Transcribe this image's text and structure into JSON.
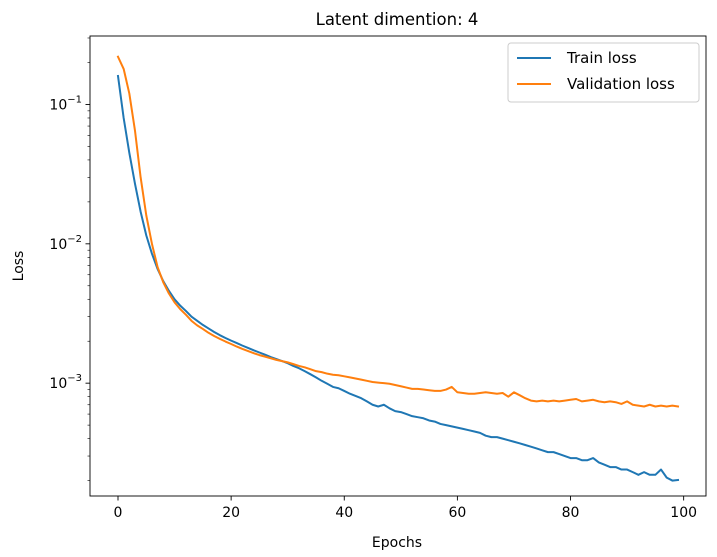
{
  "chart_data": {
    "type": "line",
    "title": "Latent dimention: 4",
    "xlabel": "Epochs",
    "ylabel": "Loss",
    "yscale": "log",
    "xlim": [
      -4.95,
      103.95
    ],
    "ylim": [
      0.000155,
      0.31
    ],
    "xticks": [
      0,
      20,
      40,
      60,
      80,
      100
    ],
    "xtick_labels": [
      "0",
      "20",
      "40",
      "60",
      "80",
      "100"
    ],
    "yticks": [
      0.1,
      0.01,
      0.001
    ],
    "ytick_labels": [
      {
        "base": "10",
        "exp": "−1"
      },
      {
        "base": "10",
        "exp": "−2"
      },
      {
        "base": "10",
        "exp": "−3"
      }
    ],
    "grid": false,
    "legend": "top-right",
    "series": [
      {
        "name": "Train loss",
        "color": "#1f77b4",
        "x": [
          0,
          1,
          2,
          3,
          4,
          5,
          6,
          7,
          8,
          9,
          10,
          11,
          12,
          13,
          14,
          15,
          16,
          17,
          18,
          19,
          20,
          21,
          22,
          23,
          24,
          25,
          26,
          27,
          28,
          29,
          30,
          31,
          32,
          33,
          34,
          35,
          36,
          37,
          38,
          39,
          40,
          41,
          42,
          43,
          44,
          45,
          46,
          47,
          48,
          49,
          50,
          51,
          52,
          53,
          54,
          55,
          56,
          57,
          58,
          59,
          60,
          61,
          62,
          63,
          64,
          65,
          66,
          67,
          68,
          69,
          70,
          71,
          72,
          73,
          74,
          75,
          76,
          77,
          78,
          79,
          80,
          81,
          82,
          83,
          84,
          85,
          86,
          87,
          88,
          89,
          90,
          91,
          92,
          93,
          94,
          95,
          96,
          97,
          98,
          99
        ],
        "values": [
          0.16,
          0.08,
          0.045,
          0.027,
          0.017,
          0.0115,
          0.0085,
          0.0066,
          0.0054,
          0.0046,
          0.004,
          0.0036,
          0.0033,
          0.003,
          0.0028,
          0.00262,
          0.00247,
          0.00233,
          0.00221,
          0.00211,
          0.00202,
          0.00194,
          0.00186,
          0.00179,
          0.00172,
          0.00166,
          0.0016,
          0.00154,
          0.00149,
          0.00144,
          0.00139,
          0.00133,
          0.00128,
          0.00122,
          0.00116,
          0.0011,
          0.00104,
          0.00099,
          0.00094,
          0.00092,
          0.00088,
          0.00084,
          0.00081,
          0.00078,
          0.00074,
          0.0007,
          0.00068,
          0.0007,
          0.00066,
          0.00063,
          0.00062,
          0.0006,
          0.00058,
          0.00057,
          0.00056,
          0.00054,
          0.00053,
          0.00051,
          0.0005,
          0.00049,
          0.00048,
          0.00047,
          0.00046,
          0.00045,
          0.00044,
          0.00042,
          0.00041,
          0.00041,
          0.0004,
          0.00039,
          0.00038,
          0.00037,
          0.00036,
          0.00035,
          0.00034,
          0.00033,
          0.00032,
          0.00032,
          0.00031,
          0.0003,
          0.00029,
          0.00029,
          0.00028,
          0.00028,
          0.00029,
          0.00027,
          0.00026,
          0.00025,
          0.00025,
          0.00024,
          0.00024,
          0.00023,
          0.00022,
          0.00023,
          0.00022,
          0.00022,
          0.00024,
          0.00021,
          0.0002,
          0.000202
        ]
      },
      {
        "name": "Validation loss",
        "color": "#ff7f0e",
        "x": [
          0,
          1,
          2,
          3,
          4,
          5,
          6,
          7,
          8,
          9,
          10,
          11,
          12,
          13,
          14,
          15,
          16,
          17,
          18,
          19,
          20,
          21,
          22,
          23,
          24,
          25,
          26,
          27,
          28,
          29,
          30,
          31,
          32,
          33,
          34,
          35,
          36,
          37,
          38,
          39,
          40,
          41,
          42,
          43,
          44,
          45,
          46,
          47,
          48,
          49,
          50,
          51,
          52,
          53,
          54,
          55,
          56,
          57,
          58,
          59,
          60,
          61,
          62,
          63,
          64,
          65,
          66,
          67,
          68,
          69,
          70,
          71,
          72,
          73,
          74,
          75,
          76,
          77,
          78,
          79,
          80,
          81,
          82,
          83,
          84,
          85,
          86,
          87,
          88,
          89,
          90,
          91,
          92,
          93,
          94,
          95,
          96,
          97,
          98,
          99
        ],
        "values": [
          0.22,
          0.18,
          0.12,
          0.065,
          0.03,
          0.016,
          0.01,
          0.0068,
          0.0053,
          0.0044,
          0.0038,
          0.0034,
          0.0031,
          0.0028,
          0.0026,
          0.00245,
          0.0023,
          0.00218,
          0.00208,
          0.00199,
          0.00191,
          0.00183,
          0.00176,
          0.0017,
          0.00164,
          0.00159,
          0.00155,
          0.00151,
          0.00147,
          0.00144,
          0.00141,
          0.00137,
          0.00133,
          0.0013,
          0.00126,
          0.00122,
          0.0012,
          0.00117,
          0.00115,
          0.00114,
          0.00112,
          0.0011,
          0.00108,
          0.00106,
          0.00104,
          0.00102,
          0.00101,
          0.001,
          0.00099,
          0.00097,
          0.00095,
          0.00093,
          0.00091,
          0.00091,
          0.0009,
          0.00089,
          0.00088,
          0.00088,
          0.0009,
          0.00094,
          0.00086,
          0.00085,
          0.00084,
          0.00084,
          0.00085,
          0.00086,
          0.00085,
          0.00084,
          0.00085,
          0.0008,
          0.00086,
          0.00082,
          0.00078,
          0.00075,
          0.00074,
          0.00075,
          0.00074,
          0.00075,
          0.00074,
          0.00075,
          0.00076,
          0.00077,
          0.00074,
          0.00075,
          0.00076,
          0.00074,
          0.00073,
          0.00074,
          0.00073,
          0.00071,
          0.00074,
          0.0007,
          0.00069,
          0.00068,
          0.0007,
          0.00068,
          0.00069,
          0.00068,
          0.00069,
          0.00068
        ]
      }
    ]
  }
}
